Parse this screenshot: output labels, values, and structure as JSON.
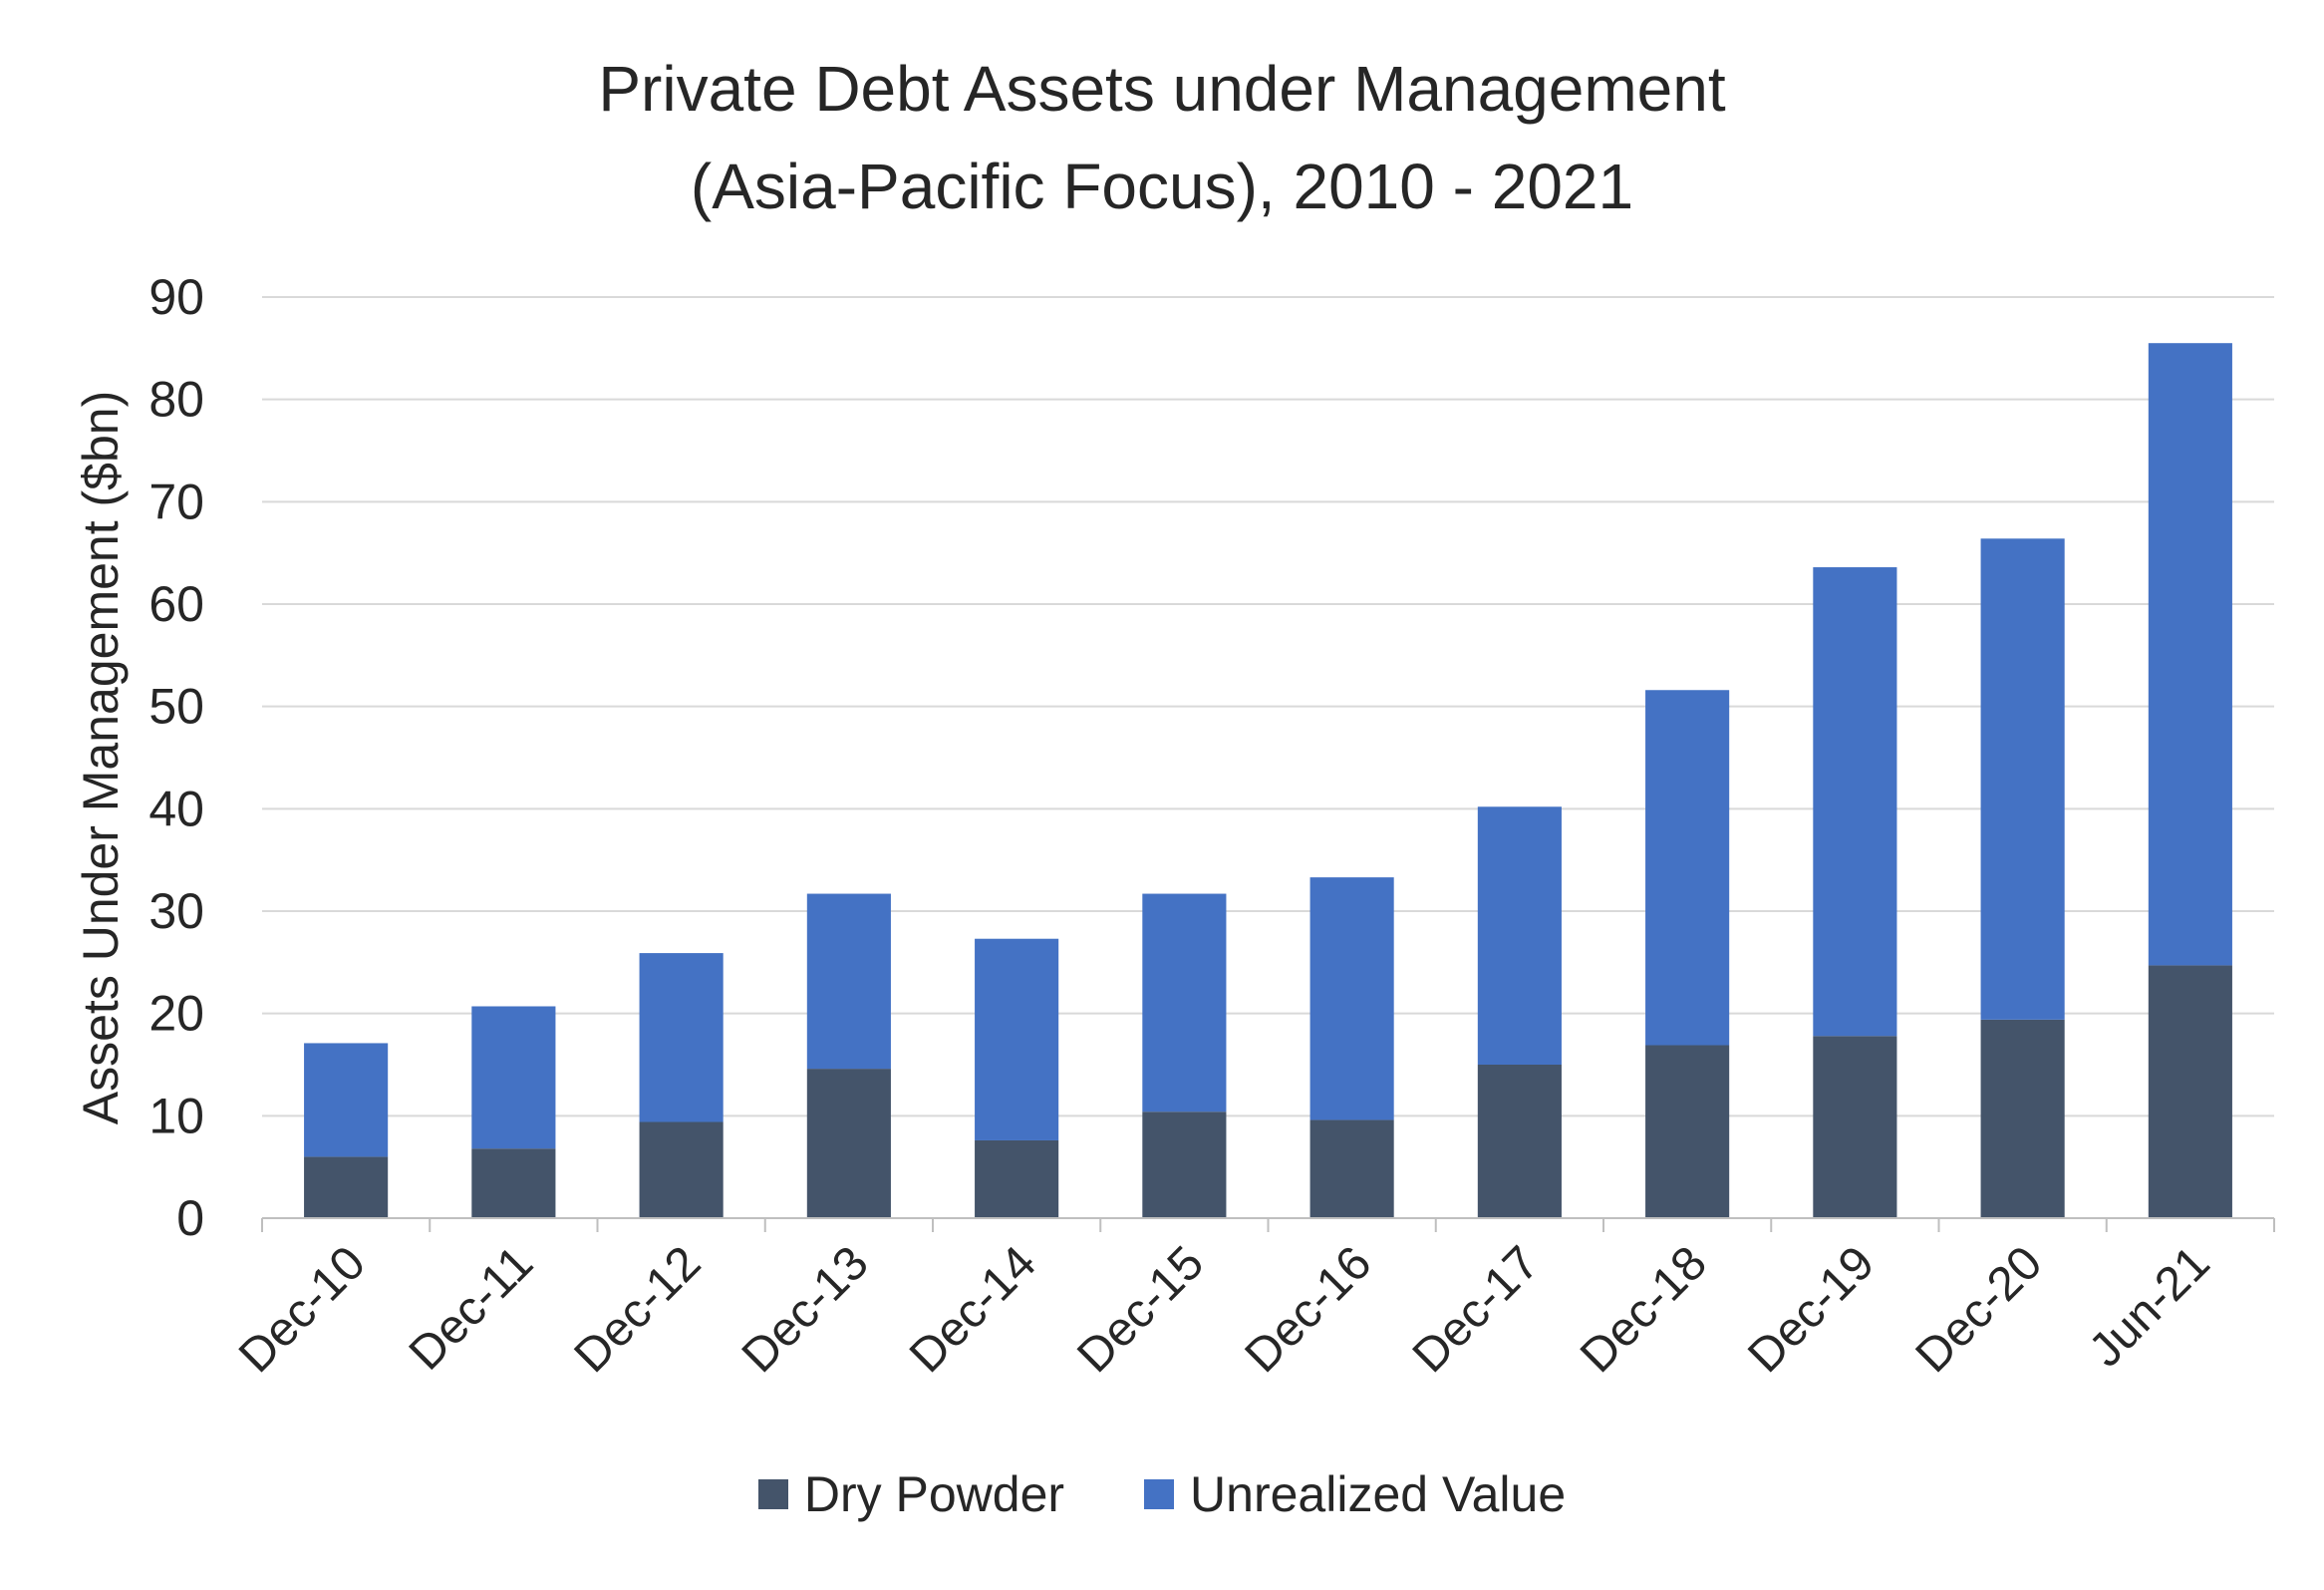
{
  "chart_data": {
    "type": "bar",
    "stacked": true,
    "title_lines": [
      "Private Debt Assets under Management",
      "(Asia-Pacific Focus), 2010 - 2021"
    ],
    "xlabel": "",
    "ylabel": "Assets Under Management ($bn)",
    "ylim": [
      0,
      90
    ],
    "yticks": [
      0,
      10,
      20,
      30,
      40,
      50,
      60,
      70,
      80,
      90
    ],
    "grid": true,
    "legend_position": "bottom",
    "categories": [
      "Dec-10",
      "Dec-11",
      "Dec-12",
      "Dec-13",
      "Dec-14",
      "Dec-15",
      "Dec-16",
      "Dec-17",
      "Dec-18",
      "Dec-19",
      "Dec-20",
      "Jun-21"
    ],
    "series": [
      {
        "name": "Dry Powder",
        "color": "#44546a",
        "values": [
          6.0,
          6.8,
          9.4,
          14.6,
          7.6,
          10.4,
          9.6,
          15.0,
          16.9,
          17.8,
          19.4,
          24.7
        ]
      },
      {
        "name": "Unrealized Value",
        "color": "#4472c4",
        "values": [
          11.1,
          13.9,
          16.5,
          17.1,
          19.7,
          21.3,
          23.7,
          25.2,
          34.7,
          45.8,
          47.0,
          60.8
        ]
      }
    ]
  }
}
